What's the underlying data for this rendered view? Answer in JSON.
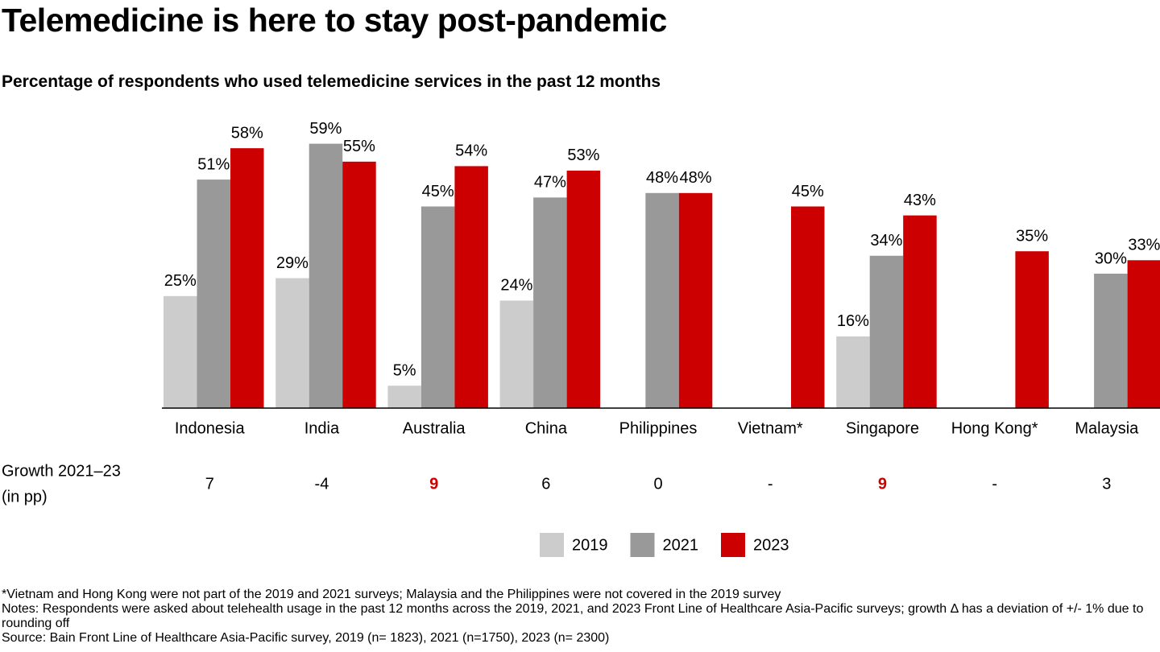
{
  "chart_data": {
    "type": "bar",
    "title": "Telemedicine is here to stay post-pandemic",
    "subtitle": "Percentage of respondents who used telemedicine services in the past 12 months",
    "categories": [
      "Indonesia",
      "India",
      "Australia",
      "China",
      "Philippines",
      "Vietnam*",
      "Singapore",
      "Hong Kong*",
      "Malaysia"
    ],
    "series": [
      {
        "name": "2019",
        "color": "#cccccc",
        "values": [
          25,
          29,
          5,
          24,
          null,
          null,
          16,
          null,
          null
        ],
        "value_labels": [
          "25%",
          "29%",
          "5%",
          "24%",
          null,
          null,
          "16%",
          null,
          null
        ]
      },
      {
        "name": "2021",
        "color": "#999999",
        "values": [
          51,
          59,
          45,
          47,
          48,
          null,
          34,
          null,
          30
        ],
        "value_labels": [
          "51%",
          "59%",
          "45%",
          "47%",
          "48%",
          null,
          "34%",
          null,
          "30%"
        ]
      },
      {
        "name": "2023",
        "color": "#cc0000",
        "values": [
          58,
          55,
          54,
          53,
          48,
          45,
          43,
          35,
          33
        ],
        "value_labels": [
          "58%",
          "55%",
          "54%",
          "53%",
          "48%",
          "45%",
          "43%",
          "35%",
          "33%"
        ]
      }
    ],
    "ylim": [
      0,
      60
    ],
    "growth": {
      "label_lines": [
        "Growth 2021–23",
        "(in pp)"
      ],
      "values": [
        "7",
        "-4",
        "9",
        "6",
        "0",
        "-",
        "9",
        "-",
        "3"
      ],
      "colors": [
        "#000000",
        "#000000",
        "#cc0000",
        "#000000",
        "#000000",
        "#000000",
        "#cc0000",
        "#000000",
        "#000000"
      ]
    },
    "notes": [
      "*Vietnam and Hong Kong were not part of the 2019 and 2021 surveys; Malaysia and the Philippines were not covered in the 2019 survey",
      "Notes: Respondents were asked about telehealth usage in the past 12 months across the 2019, 2021, and 2023 Front Line of Healthcare Asia-Pacific surveys; growth Δ has a deviation of +/- 1% due to rounding off",
      "Source: Bain Front Line of Healthcare Asia-Pacific survey, 2019 (n= 1823), 2021 (n=1750), 2023 (n= 2300)"
    ]
  }
}
